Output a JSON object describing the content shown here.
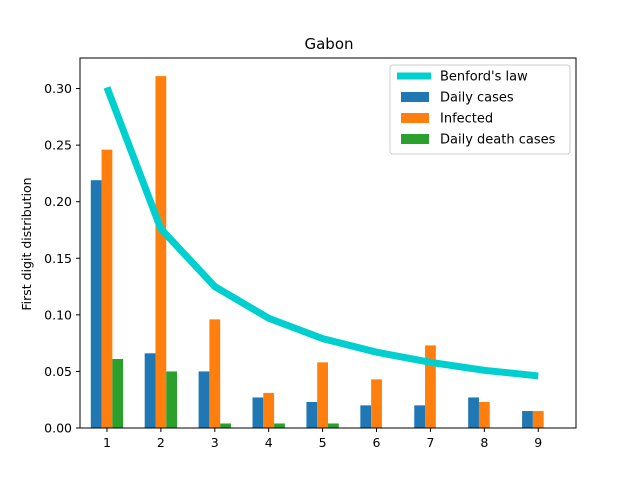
{
  "chart_data": {
    "type": "bar",
    "title": "Gabon",
    "xlabel": "",
    "ylabel": "First digit distribution",
    "categories": [
      1,
      2,
      3,
      4,
      5,
      6,
      7,
      8,
      9
    ],
    "ylim": [
      0,
      0.327
    ],
    "yticks": [
      "0.00",
      "0.05",
      "0.10",
      "0.15",
      "0.20",
      "0.25",
      "0.30"
    ],
    "legend_position": "top-right",
    "line": {
      "name": "Benford's law",
      "color": "#00cfcf",
      "values": [
        0.301,
        0.176,
        0.125,
        0.097,
        0.079,
        0.067,
        0.058,
        0.051,
        0.046
      ]
    },
    "series": [
      {
        "name": "Daily cases",
        "color": "#1f77b4",
        "values": [
          0.219,
          0.066,
          0.05,
          0.027,
          0.023,
          0.02,
          0.02,
          0.027,
          0.015
        ]
      },
      {
        "name": "Infected",
        "color": "#ff7f0e",
        "values": [
          0.246,
          0.311,
          0.096,
          0.031,
          0.058,
          0.043,
          0.073,
          0.023,
          0.015
        ]
      },
      {
        "name": "Daily death cases",
        "color": "#2ca02c",
        "values": [
          0.061,
          0.05,
          0.004,
          0.004,
          0.004,
          0.0,
          0.0,
          0.0,
          0.0
        ]
      }
    ]
  }
}
